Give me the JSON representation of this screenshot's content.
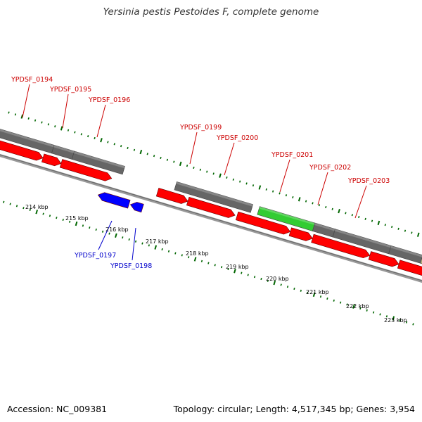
{
  "title": "Yersinia pestis Pestoides F, complete genome",
  "footer": {
    "accession": "Accession: NC_009381",
    "stats": "Topology: circular; Length: 4,517,345 bp; Genes: 3,954"
  },
  "colors": {
    "backbone": "#999999",
    "cds_forward": "#ff0000",
    "cds_reverse": "#0000ff",
    "gene_gray": "#666666",
    "gene_green": "#33cc33",
    "gene_tan": "#bdb57a",
    "tick": "#006600",
    "label_forward": "#cc0000",
    "label_reverse": "#0000cc",
    "kbp_label": "#000000"
  },
  "kbp_labels": [
    "214 kbp",
    "215 kbp",
    "216 kbp",
    "217 kbp",
    "218 kbp",
    "219 kbp",
    "220 kbp",
    "221 kbp",
    "222 kbp",
    "223 kbp"
  ],
  "genes_forward": [
    {
      "label": "YPDSF_0194"
    },
    {
      "label": "YPDSF_0195"
    },
    {
      "label": "YPDSF_0196"
    },
    {
      "label": "YPDSF_0199"
    },
    {
      "label": "YPDSF_0200"
    },
    {
      "label": "YPDSF_0201"
    },
    {
      "label": "YPDSF_0202"
    },
    {
      "label": "YPDSF_0203"
    }
  ],
  "genes_reverse": [
    {
      "label": "YPDSF_0197"
    },
    {
      "label": "YPDSF_0198"
    }
  ]
}
